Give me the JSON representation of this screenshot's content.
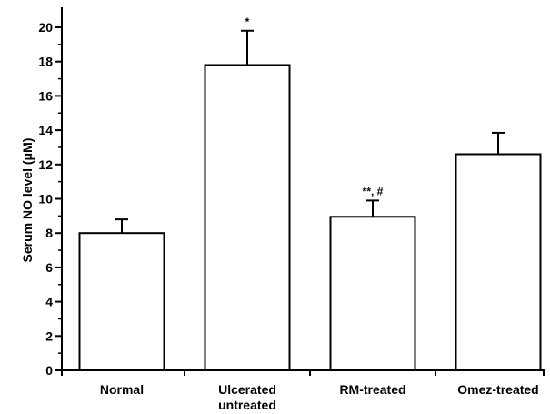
{
  "chart_data": {
    "type": "bar",
    "categories": [
      [
        "Normal"
      ],
      [
        "Ulcerated",
        "untreated"
      ],
      [
        "RM-treated"
      ],
      [
        "Omez-treated"
      ]
    ],
    "values": [
      8.0,
      17.8,
      8.95,
      12.6
    ],
    "errors": [
      0.8,
      2.0,
      0.95,
      1.25
    ],
    "annotations": [
      "",
      "*",
      "**, #",
      ""
    ],
    "ylabel": [
      "Serum  NO  level  (",
      "μ",
      "M)"
    ],
    "yticks": [
      0,
      2,
      4,
      6,
      8,
      10,
      12,
      14,
      16,
      18,
      20
    ],
    "ylim": [
      0,
      21
    ],
    "grid": false,
    "colors": {
      "bar_fill": "#ffffff",
      "bar_stroke": "#000000"
    }
  }
}
